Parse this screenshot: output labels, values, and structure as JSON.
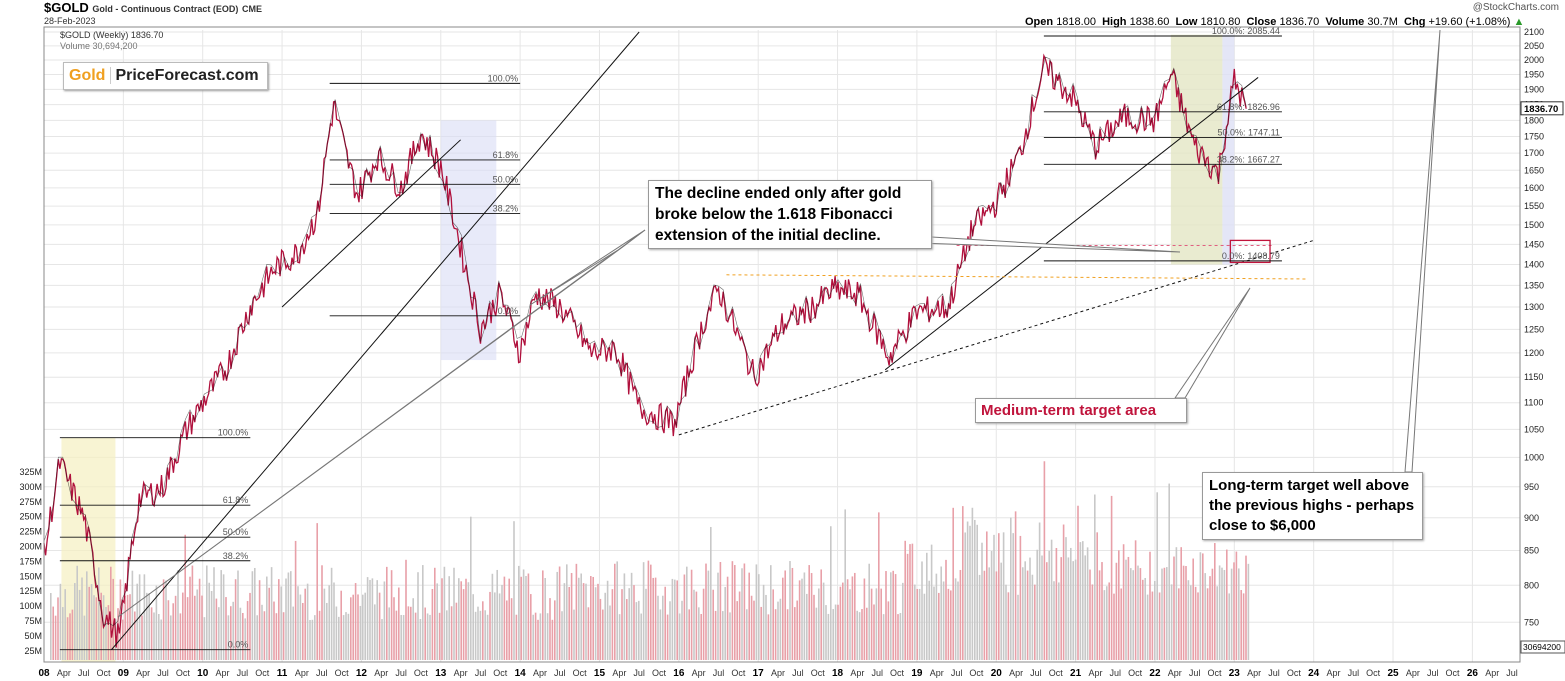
{
  "header": {
    "symbol": "$GOLD",
    "name": "Gold - Continuous Contract (EOD)",
    "exchange": "CME",
    "date": "28-Feb-2023",
    "legend_price": "$GOLD (Weekly) 1836.70",
    "legend_volume": "Volume 30,694,200",
    "open_label": "Open",
    "open": "1818.00",
    "high_label": "High",
    "high": "1838.60",
    "low_label": "Low",
    "low": "1810.80",
    "close_label": "Close",
    "close": "1836.70",
    "volume_label": "Volume",
    "volume": "30.7M",
    "chg_label": "Chg",
    "chg": "+19.60 (+1.08%)",
    "watermark": "@StockCharts.com"
  },
  "brand": {
    "gold": "Gold",
    "rest": "PriceForecast.com"
  },
  "annotations": {
    "decline": "The decline ended only after gold broke below the 1.618 Fibonacci extension of the initial decline.",
    "medium": "Medium-term target area",
    "long": "Long-term target well above the previous highs - perhaps close to $6,000"
  },
  "chart_data": {
    "type": "line",
    "title": "$GOLD Gold - Continuous Contract (EOD)",
    "xlabel": "",
    "ylabel": "",
    "ylim": [
      700,
      2100
    ],
    "y_scale": "log",
    "price_ticks": [
      2100,
      2050,
      2000,
      1950,
      1900,
      1850,
      1800,
      1750,
      1700,
      1650,
      1600,
      1550,
      1500,
      1450,
      1400,
      1350,
      1300,
      1250,
      1200,
      1150,
      1100,
      1050,
      1000,
      950,
      900,
      850,
      800,
      750
    ],
    "last_price_label": "1836.70",
    "last_volume_label": "30694200",
    "volume_ticks": [
      "325M",
      "300M",
      "275M",
      "250M",
      "225M",
      "200M",
      "175M",
      "150M",
      "125M",
      "100M",
      "75M",
      "50M",
      "25M"
    ],
    "year_labels": [
      "08",
      "09",
      "10",
      "11",
      "12",
      "13",
      "14",
      "15",
      "16",
      "17",
      "18",
      "19",
      "20",
      "21",
      "22",
      "23",
      "24",
      "25",
      "26"
    ],
    "month_labels": [
      "Apr",
      "Jul",
      "Oct"
    ],
    "series": [
      {
        "values_x": [
          2008.0,
          2008.2,
          2008.5,
          2008.75,
          2008.95,
          2009.2,
          2009.5,
          2009.8,
          2010.0,
          2010.3,
          2010.6,
          2010.9,
          2011.2,
          2011.45,
          2011.65,
          2011.8,
          2011.95,
          2012.2,
          2012.5,
          2012.75,
          2013.0,
          2013.3,
          2013.5,
          2013.75,
          2014.0,
          2014.2,
          2014.5,
          2014.9,
          2015.2,
          2015.5,
          2015.95,
          2016.3,
          2016.5,
          2016.95,
          2017.3,
          2017.7,
          2017.95,
          2018.25,
          2018.65,
          2019.0,
          2019.4,
          2019.7,
          2020.0,
          2020.3,
          2020.6,
          2020.95,
          2021.25,
          2021.6,
          2022.0,
          2022.2,
          2022.5,
          2022.8,
          2023.0,
          2023.15
        ],
        "values": [
          840,
          990,
          900,
          760,
          730,
          930,
          950,
          1050,
          1100,
          1170,
          1300,
          1390,
          1430,
          1530,
          1850,
          1700,
          1580,
          1690,
          1600,
          1760,
          1660,
          1400,
          1250,
          1330,
          1200,
          1330,
          1300,
          1200,
          1210,
          1090,
          1060,
          1260,
          1340,
          1150,
          1260,
          1300,
          1340,
          1330,
          1190,
          1290,
          1300,
          1490,
          1560,
          1700,
          1970,
          1880,
          1720,
          1810,
          1800,
          1950,
          1720,
          1640,
          1930,
          1836.7
        ]
      }
    ],
    "fibonacci": [
      {
        "label": "100.0%",
        "price": 1035
      },
      {
        "label": "61.8%",
        "price": 920
      },
      {
        "label": "50.0%",
        "price": 870
      },
      {
        "label": "38.2%",
        "price": 835
      },
      {
        "label": "0.0%",
        "price": 715
      },
      {
        "label": "100.0%",
        "price": 1920
      },
      {
        "label": "61.8%",
        "price": 1680
      },
      {
        "label": "50.0%",
        "price": 1610
      },
      {
        "label": "38.2%",
        "price": 1530
      },
      {
        "label": "0.0%",
        "price": 1280
      },
      {
        "label": "100.0%: 2085.44",
        "price": 2085.44
      },
      {
        "label": "61.8%: 1826.96",
        "price": 1826.96
      },
      {
        "label": "50.0%: 1747.11",
        "price": 1747.11
      },
      {
        "label": "38.2%: 1667.27",
        "price": 1667.27
      },
      {
        "label": "0.0%: 1408.79",
        "price": 1408.79
      }
    ]
  }
}
